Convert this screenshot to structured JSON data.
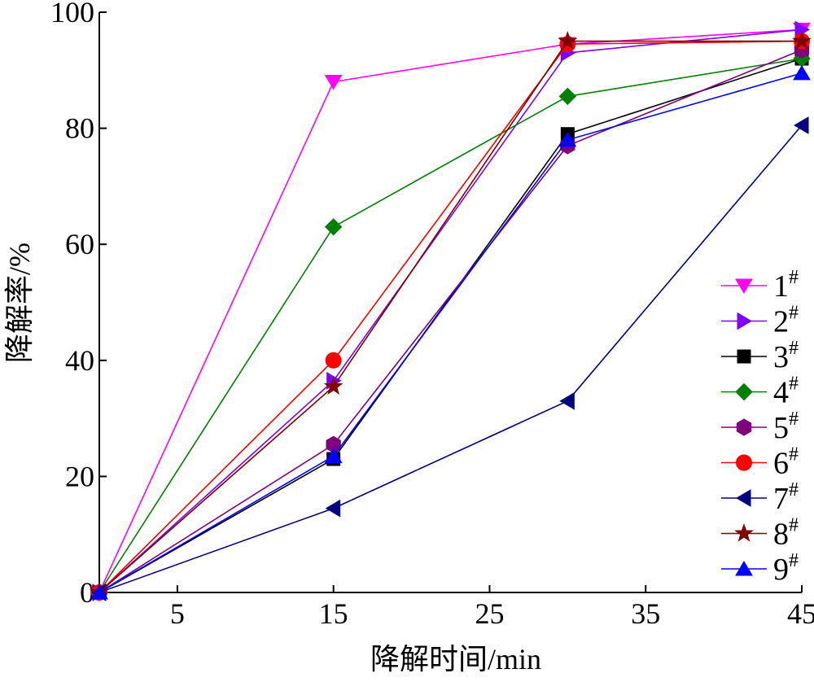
{
  "chart_data": {
    "type": "line",
    "xlabel": "降解时间/min",
    "ylabel": "降解率/%",
    "xlim": [
      0,
      45
    ],
    "ylim": [
      0,
      100
    ],
    "xticks": [
      5,
      15,
      25,
      35,
      45
    ],
    "yticks": [
      0,
      20,
      40,
      60,
      80,
      100
    ],
    "grid": false,
    "legend_position": "right",
    "x": [
      0,
      15,
      30,
      45
    ],
    "series": [
      {
        "name": "1",
        "sup": "#",
        "color": "#ff00ff",
        "marker": "triangle-down",
        "values": [
          0,
          88,
          94.5,
          97
        ]
      },
      {
        "name": "2",
        "sup": "#",
        "color": "#8000ff",
        "marker": "triangle-right",
        "values": [
          0,
          36.5,
          93,
          97
        ]
      },
      {
        "name": "3",
        "sup": "#",
        "color": "#000000",
        "marker": "square",
        "values": [
          0,
          23,
          79,
          92
        ]
      },
      {
        "name": "4",
        "sup": "#",
        "color": "#008000",
        "marker": "diamond",
        "values": [
          0,
          63,
          85.5,
          92
        ]
      },
      {
        "name": "5",
        "sup": "#",
        "color": "#800080",
        "marker": "hexagon",
        "values": [
          0,
          25.5,
          77,
          93.5
        ]
      },
      {
        "name": "6",
        "sup": "#",
        "color": "#ff0000",
        "marker": "circle",
        "values": [
          0,
          40,
          94.5,
          95
        ]
      },
      {
        "name": "7",
        "sup": "#",
        "color": "#000080",
        "marker": "triangle-left",
        "values": [
          0,
          14.5,
          33,
          80.5
        ]
      },
      {
        "name": "8",
        "sup": "#",
        "color": "#800000",
        "marker": "star",
        "values": [
          0,
          35.5,
          95,
          95
        ]
      },
      {
        "name": "9",
        "sup": "#",
        "color": "#0000ff",
        "marker": "triangle-up",
        "values": [
          0,
          23.5,
          78,
          89.5
        ]
      }
    ]
  }
}
